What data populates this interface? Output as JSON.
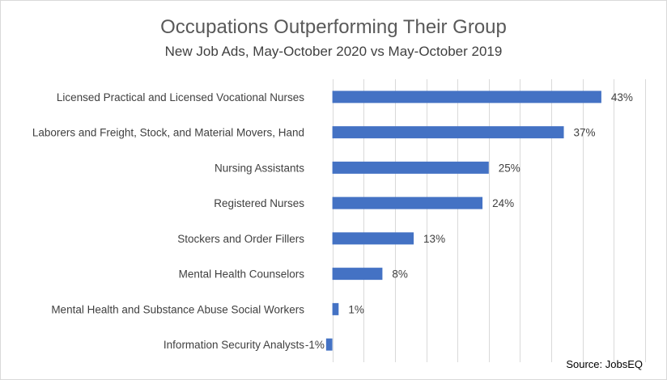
{
  "chart_data": {
    "type": "bar",
    "orientation": "horizontal",
    "title": "Occupations Outperforming Their Group",
    "subtitle": "New Job Ads, May-October 2020 vs May-October 2019",
    "source": "Source: JobsEQ",
    "categories": [
      "Licensed Practical and Licensed Vocational Nurses",
      "Laborers and Freight, Stock, and Material Movers, Hand",
      "Nursing Assistants",
      "Registered Nurses",
      "Stockers and Order Fillers",
      "Mental Health Counselors",
      "Mental Health and Substance Abuse Social Workers",
      "Information Security Analysts"
    ],
    "values": [
      43,
      37,
      25,
      24,
      13,
      8,
      1,
      -1
    ],
    "value_labels": [
      "43%",
      "37%",
      "25%",
      "24%",
      "13%",
      "8%",
      "1%",
      "-1%"
    ],
    "xlim": [
      -1.5,
      50
    ],
    "grid": true,
    "bar_color": "#4472c4",
    "legend": "none"
  }
}
